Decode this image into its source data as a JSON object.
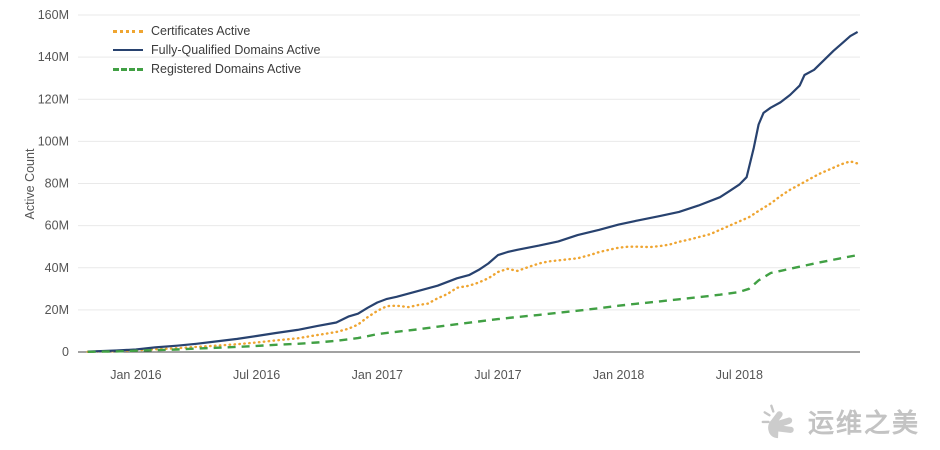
{
  "chart_data": {
    "type": "line",
    "title": "",
    "xlabel": "",
    "ylabel": "Active Count",
    "y_unit": "M",
    "grid": "horizontal",
    "legend_position": "top-left-inside",
    "x_range": [
      2015.76,
      2019.0
    ],
    "y_range": [
      0,
      160
    ],
    "x_ticks": [
      {
        "x": 2016.0,
        "label": "Jan 2016"
      },
      {
        "x": 2016.5,
        "label": "Jul 2016"
      },
      {
        "x": 2017.0,
        "label": "Jan 2017"
      },
      {
        "x": 2017.5,
        "label": "Jul 2017"
      },
      {
        "x": 2018.0,
        "label": "Jan 2018"
      },
      {
        "x": 2018.5,
        "label": "Jul 2018"
      }
    ],
    "y_ticks": [
      {
        "v": 0,
        "label": "0"
      },
      {
        "v": 20,
        "label": "20M"
      },
      {
        "v": 40,
        "label": "40M"
      },
      {
        "v": 60,
        "label": "60M"
      },
      {
        "v": 80,
        "label": "80M"
      },
      {
        "v": 100,
        "label": "100M"
      },
      {
        "v": 120,
        "label": "120M"
      },
      {
        "v": 140,
        "label": "140M"
      },
      {
        "v": 160,
        "label": "160M"
      }
    ],
    "series": [
      {
        "name": "Certificates Active",
        "color": "#efa531",
        "style": "dotted",
        "points": [
          [
            2015.8,
            0.1
          ],
          [
            2015.92,
            0.4
          ],
          [
            2016.0,
            0.8
          ],
          [
            2016.08,
            1.3
          ],
          [
            2016.17,
            1.8
          ],
          [
            2016.25,
            2.4
          ],
          [
            2016.33,
            3.0
          ],
          [
            2016.42,
            3.7
          ],
          [
            2016.5,
            4.5
          ],
          [
            2016.58,
            5.5
          ],
          [
            2016.67,
            6.5
          ],
          [
            2016.75,
            8.0
          ],
          [
            2016.83,
            9.5
          ],
          [
            2016.88,
            11.0
          ],
          [
            2016.92,
            13.0
          ],
          [
            2016.96,
            16.5
          ],
          [
            2017.0,
            19.5
          ],
          [
            2017.04,
            21.8
          ],
          [
            2017.08,
            22.0
          ],
          [
            2017.13,
            21.3
          ],
          [
            2017.17,
            22.3
          ],
          [
            2017.21,
            23.0
          ],
          [
            2017.25,
            25.5
          ],
          [
            2017.29,
            27.5
          ],
          [
            2017.33,
            30.5
          ],
          [
            2017.38,
            31.5
          ],
          [
            2017.42,
            33.0
          ],
          [
            2017.46,
            35.0
          ],
          [
            2017.5,
            38.0
          ],
          [
            2017.54,
            39.5
          ],
          [
            2017.58,
            38.5
          ],
          [
            2017.63,
            40.5
          ],
          [
            2017.67,
            42.0
          ],
          [
            2017.71,
            43.0
          ],
          [
            2017.75,
            43.5
          ],
          [
            2017.79,
            44.0
          ],
          [
            2017.83,
            44.5
          ],
          [
            2017.88,
            46.0
          ],
          [
            2017.92,
            47.5
          ],
          [
            2017.96,
            48.5
          ],
          [
            2018.0,
            49.5
          ],
          [
            2018.04,
            50.0
          ],
          [
            2018.08,
            50.0
          ],
          [
            2018.13,
            49.8
          ],
          [
            2018.17,
            50.3
          ],
          [
            2018.21,
            51.0
          ],
          [
            2018.25,
            52.3
          ],
          [
            2018.29,
            53.3
          ],
          [
            2018.33,
            54.5
          ],
          [
            2018.38,
            56.0
          ],
          [
            2018.42,
            58.0
          ],
          [
            2018.46,
            60.0
          ],
          [
            2018.5,
            62.0
          ],
          [
            2018.54,
            64.0
          ],
          [
            2018.58,
            67.0
          ],
          [
            2018.63,
            70.5
          ],
          [
            2018.67,
            74.0
          ],
          [
            2018.71,
            77.0
          ],
          [
            2018.75,
            79.5
          ],
          [
            2018.79,
            82.0
          ],
          [
            2018.83,
            84.5
          ],
          [
            2018.88,
            87.0
          ],
          [
            2018.92,
            89.0
          ],
          [
            2018.96,
            90.5
          ],
          [
            2018.99,
            89.5
          ]
        ]
      },
      {
        "name": "Fully-Qualified Domains Active",
        "color": "#28426f",
        "style": "solid",
        "points": [
          [
            2015.8,
            0.2
          ],
          [
            2015.92,
            0.7
          ],
          [
            2016.0,
            1.2
          ],
          [
            2016.08,
            2.2
          ],
          [
            2016.17,
            3.0
          ],
          [
            2016.25,
            3.9
          ],
          [
            2016.33,
            5.0
          ],
          [
            2016.42,
            6.2
          ],
          [
            2016.5,
            7.6
          ],
          [
            2016.58,
            9.0
          ],
          [
            2016.67,
            10.5
          ],
          [
            2016.75,
            12.3
          ],
          [
            2016.83,
            14.0
          ],
          [
            2016.88,
            16.8
          ],
          [
            2016.92,
            18.2
          ],
          [
            2016.96,
            21.0
          ],
          [
            2017.0,
            23.5
          ],
          [
            2017.04,
            25.2
          ],
          [
            2017.08,
            26.2
          ],
          [
            2017.17,
            29.0
          ],
          [
            2017.25,
            31.5
          ],
          [
            2017.33,
            35.0
          ],
          [
            2017.38,
            36.5
          ],
          [
            2017.42,
            39.0
          ],
          [
            2017.46,
            42.0
          ],
          [
            2017.5,
            46.0
          ],
          [
            2017.54,
            47.5
          ],
          [
            2017.58,
            48.5
          ],
          [
            2017.67,
            50.5
          ],
          [
            2017.75,
            52.5
          ],
          [
            2017.83,
            55.5
          ],
          [
            2017.92,
            58.0
          ],
          [
            2018.0,
            60.5
          ],
          [
            2018.08,
            62.5
          ],
          [
            2018.17,
            64.5
          ],
          [
            2018.25,
            66.5
          ],
          [
            2018.33,
            69.5
          ],
          [
            2018.42,
            73.5
          ],
          [
            2018.46,
            76.5
          ],
          [
            2018.5,
            79.5
          ],
          [
            2018.53,
            83.0
          ],
          [
            2018.56,
            97.0
          ],
          [
            2018.58,
            108.0
          ],
          [
            2018.6,
            113.5
          ],
          [
            2018.63,
            116.0
          ],
          [
            2018.67,
            118.5
          ],
          [
            2018.71,
            122.0
          ],
          [
            2018.75,
            126.5
          ],
          [
            2018.77,
            131.5
          ],
          [
            2018.81,
            134.0
          ],
          [
            2018.85,
            138.5
          ],
          [
            2018.89,
            143.0
          ],
          [
            2018.93,
            147.0
          ],
          [
            2018.96,
            150.0
          ],
          [
            2018.99,
            152.0
          ]
        ]
      },
      {
        "name": "Registered Domains Active",
        "color": "#41a044",
        "style": "dashed",
        "points": [
          [
            2015.8,
            0.1
          ],
          [
            2015.92,
            0.3
          ],
          [
            2016.0,
            0.6
          ],
          [
            2016.08,
            0.9
          ],
          [
            2016.17,
            1.2
          ],
          [
            2016.25,
            1.6
          ],
          [
            2016.33,
            2.0
          ],
          [
            2016.42,
            2.4
          ],
          [
            2016.5,
            2.9
          ],
          [
            2016.58,
            3.4
          ],
          [
            2016.67,
            3.9
          ],
          [
            2016.75,
            4.5
          ],
          [
            2016.83,
            5.3
          ],
          [
            2016.92,
            6.6
          ],
          [
            2016.96,
            7.5
          ],
          [
            2017.0,
            8.5
          ],
          [
            2017.08,
            9.6
          ],
          [
            2017.17,
            10.8
          ],
          [
            2017.25,
            12.0
          ],
          [
            2017.33,
            13.2
          ],
          [
            2017.42,
            14.5
          ],
          [
            2017.5,
            15.6
          ],
          [
            2017.58,
            16.6
          ],
          [
            2017.67,
            17.6
          ],
          [
            2017.75,
            18.6
          ],
          [
            2017.83,
            19.6
          ],
          [
            2017.92,
            20.8
          ],
          [
            2018.0,
            22.0
          ],
          [
            2018.08,
            23.0
          ],
          [
            2018.17,
            24.0
          ],
          [
            2018.25,
            25.0
          ],
          [
            2018.33,
            26.0
          ],
          [
            2018.42,
            27.2
          ],
          [
            2018.5,
            28.5
          ],
          [
            2018.54,
            30.0
          ],
          [
            2018.58,
            34.0
          ],
          [
            2018.63,
            37.5
          ],
          [
            2018.67,
            38.5
          ],
          [
            2018.75,
            40.5
          ],
          [
            2018.83,
            42.5
          ],
          [
            2018.92,
            44.5
          ],
          [
            2018.99,
            46.0
          ]
        ]
      }
    ],
    "colors": {
      "grid": "#e9e9e9",
      "axis": "#444444",
      "tick_text": "#555555"
    }
  },
  "watermark": {
    "text": "运维之美"
  }
}
